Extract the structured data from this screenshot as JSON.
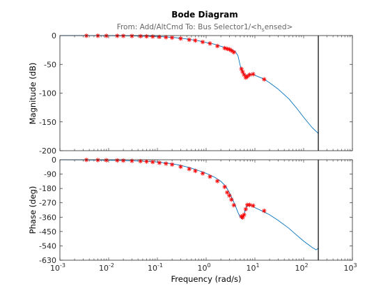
{
  "chart_data": {
    "type": "line",
    "title": "Bode Diagram",
    "subtitle": {
      "lead": "From: Add/AltCmd  To: Bus Selector1/<h",
      "sub": "s",
      "tail": "ensed>"
    },
    "xlabel": "Frequency  (rad/s)",
    "x_scale": "log",
    "xlim": [
      0.001,
      1000
    ],
    "x_ticks": [
      {
        "mant": "10",
        "exp": "-3"
      },
      {
        "mant": "10",
        "exp": "-2"
      },
      {
        "mant": "10",
        "exp": "-1"
      },
      {
        "mant": "10",
        "exp": "0"
      },
      {
        "mant": "10",
        "exp": "1"
      },
      {
        "mant": "10",
        "exp": "2"
      },
      {
        "mant": "10",
        "exp": "3"
      }
    ],
    "vertical_marker_x": 200,
    "colors": {
      "model_line": "#0072bd",
      "measured_markers": "#ff0000",
      "marker_line": "#000000",
      "axes": "#262626"
    },
    "magnitude": {
      "ylabel": "Magnitude (dB)",
      "ylim": [
        -200,
        0
      ],
      "ytick_labels": [
        "0",
        "-50",
        "-100",
        "-150",
        "-200"
      ],
      "ytick_values": [
        0,
        -50,
        -100,
        -150,
        -200
      ],
      "model": {
        "x": [
          0.001,
          0.003,
          0.01,
          0.03,
          0.1,
          0.2,
          0.3,
          0.5,
          0.7,
          1,
          1.5,
          2,
          2.5,
          3,
          3.5,
          4,
          4.5,
          5,
          5.5,
          6,
          6.5,
          7,
          8,
          9,
          10,
          15,
          20,
          30,
          50,
          70,
          100,
          150,
          200
        ],
        "y": [
          0,
          0,
          -0.2,
          -0.5,
          -1.5,
          -3,
          -4.5,
          -7,
          -9,
          -12,
          -15,
          -18.5,
          -21,
          -23,
          -25,
          -28,
          -35,
          -52,
          -62,
          -67,
          -69,
          -68,
          -67,
          -67.5,
          -69,
          -75,
          -82,
          -93,
          -110,
          -125,
          -142,
          -160,
          -170
        ]
      },
      "measured": {
        "x": [
          0.0035,
          0.006,
          0.009,
          0.015,
          0.02,
          0.03,
          0.045,
          0.06,
          0.08,
          0.11,
          0.15,
          0.2,
          0.3,
          0.45,
          0.6,
          0.85,
          1.2,
          1.7,
          2.4,
          2.7,
          3.0,
          3.3,
          3.7,
          5.3,
          5.6,
          6.0,
          6.5,
          7.0,
          7.8,
          9.2,
          15.5
        ],
        "y": [
          -0.3,
          -0.3,
          -0.4,
          -0.5,
          -0.6,
          -0.8,
          -1,
          -1.3,
          -1.7,
          -2.3,
          -2.9,
          -3.6,
          -5.2,
          -7.3,
          -8.5,
          -11.2,
          -13.8,
          -18.2,
          -21.8,
          -23,
          -24,
          -26,
          -29,
          -58,
          -63,
          -68,
          -73,
          -71,
          -68,
          -67,
          -76
        ]
      }
    },
    "phase": {
      "ylabel": "Phase (deg)",
      "ylim": [
        -630,
        0
      ],
      "ytick_labels": [
        "0",
        "-90",
        "-180",
        "-270",
        "-360",
        "-450",
        "-540",
        "-630"
      ],
      "ytick_values": [
        0,
        -90,
        -180,
        -270,
        -360,
        -450,
        -540,
        -630
      ],
      "model": {
        "x": [
          0.001,
          0.003,
          0.01,
          0.03,
          0.1,
          0.2,
          0.3,
          0.5,
          0.7,
          1,
          1.5,
          2,
          2.5,
          3,
          3.5,
          4,
          4.5,
          5,
          5.5,
          6,
          6.5,
          7,
          8,
          9,
          10,
          15,
          20,
          30,
          50,
          70,
          100,
          150,
          180,
          200
        ],
        "y": [
          0,
          -1,
          -3,
          -6,
          -14,
          -25,
          -35,
          -53,
          -68,
          -85,
          -110,
          -135,
          -165,
          -205,
          -250,
          -290,
          -330,
          -360,
          -370,
          -340,
          -305,
          -285,
          -285,
          -290,
          -300,
          -325,
          -345,
          -380,
          -430,
          -470,
          -510,
          -550,
          -565,
          -555
        ]
      },
      "measured": {
        "x": [
          0.0035,
          0.006,
          0.009,
          0.015,
          0.02,
          0.03,
          0.045,
          0.06,
          0.08,
          0.11,
          0.15,
          0.2,
          0.3,
          0.45,
          0.6,
          0.85,
          1.2,
          1.7,
          2.4,
          2.7,
          3.0,
          3.3,
          3.7,
          5.3,
          5.6,
          6.0,
          6.5,
          7.0,
          7.8,
          9.2,
          15.5
        ],
        "y": [
          -1,
          -2,
          -3,
          -4,
          -5,
          -7,
          -9,
          -11,
          -14,
          -19,
          -24,
          -30,
          -44,
          -58,
          -70,
          -86,
          -106,
          -134,
          -170,
          -205,
          -225,
          -250,
          -285,
          -355,
          -362,
          -345,
          -310,
          -283,
          -283,
          -288,
          -320
        ]
      }
    }
  }
}
